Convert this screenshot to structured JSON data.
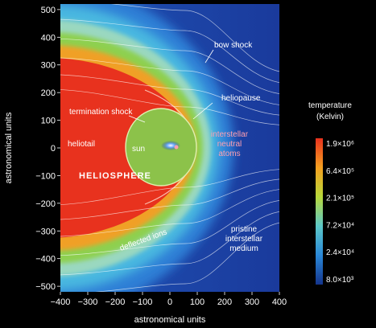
{
  "chart_data": {
    "type": "heatmap",
    "title": "",
    "xlabel": "astronomical units",
    "ylabel": "astronomical units",
    "xlim": [
      -400,
      400
    ],
    "ylim": [
      -520,
      520
    ],
    "x_ticks": [
      -400,
      -300,
      -200,
      -100,
      0,
      100,
      200,
      300,
      400
    ],
    "x_tick_labels": [
      "−400",
      "−300",
      "−200",
      "−100",
      "0",
      "100",
      "200",
      "300",
      "400"
    ],
    "y_ticks": [
      500,
      400,
      300,
      200,
      100,
      0,
      -100,
      -200,
      -300,
      -400,
      -500
    ],
    "y_tick_labels": [
      "500",
      "400",
      "300",
      "200",
      "100",
      "0",
      "−100",
      "−200",
      "−300",
      "−400",
      "−500"
    ],
    "colorbar": {
      "title_line1": "temperature",
      "title_line2": "(Kelvin)",
      "labels": [
        "1.9×10⁶",
        "6.4×10⁵",
        "2.1×10⁵",
        "7.2×10⁴",
        "2.4×10⁴",
        "8.0×10³"
      ],
      "colors": [
        "#e8321e",
        "#f5a020",
        "#b8d83a",
        "#5cc8c8",
        "#2a88d8",
        "#14348c"
      ]
    },
    "annotations": {
      "bow_shock": "bow shock",
      "heliopause": "heliopause",
      "termination_shock": "termination shock",
      "heliotail": "heliotail",
      "sun": "sun",
      "heliosphere": "HELIOSPHERE",
      "interstellar_neutral_atoms": [
        "interstellar",
        "neutral",
        "atoms"
      ],
      "pristine_medium": [
        "pristine",
        "interstellar",
        "medium"
      ],
      "deflected_ions": "deflected ions"
    }
  }
}
